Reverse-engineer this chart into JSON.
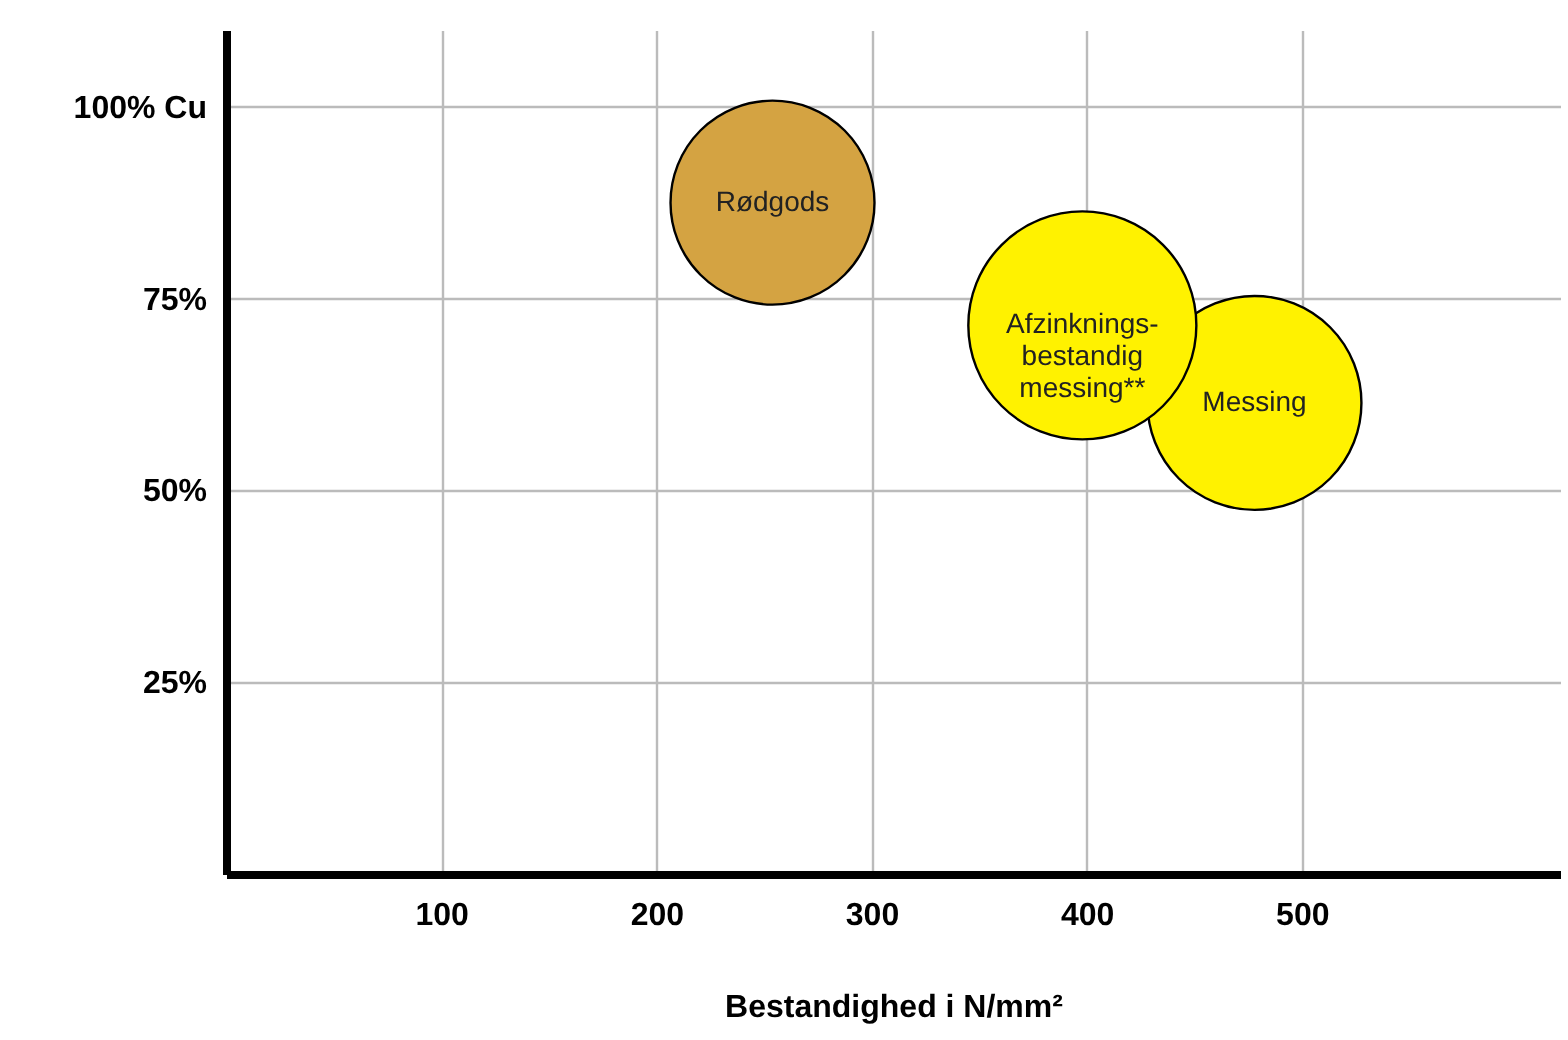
{
  "chart_data": {
    "type": "bubble",
    "xlabel": "Bestandighed i N/mm²",
    "x": [
      254,
      398,
      478
    ],
    "values": [
      87.5,
      71.5,
      61.4
    ],
    "sizes": [
      0.8,
      1,
      0.88
    ],
    "colors": [
      "#d4a342",
      "#fff200",
      "#fff200"
    ],
    "xlim": [
      0,
      620
    ],
    "ylim": [
      0,
      110
    ],
    "xticks": [
      100,
      200,
      300,
      400,
      500
    ],
    "yticks": [
      {
        "value": 25,
        "label": "25%"
      },
      {
        "value": 50,
        "label": "50%"
      },
      {
        "value": 75,
        "label": "75%"
      },
      {
        "value": 100,
        "label": "100% Cu"
      }
    ],
    "grid": true,
    "annotations": [
      {
        "text": "Rødgods",
        "x": 254,
        "y": 87.5
      },
      {
        "text": "Afzinknings-\nbestandig\nmessing**",
        "x": 398,
        "y": 71.5
      },
      {
        "text": "Messing",
        "x": 478,
        "y": 61.4
      }
    ]
  }
}
